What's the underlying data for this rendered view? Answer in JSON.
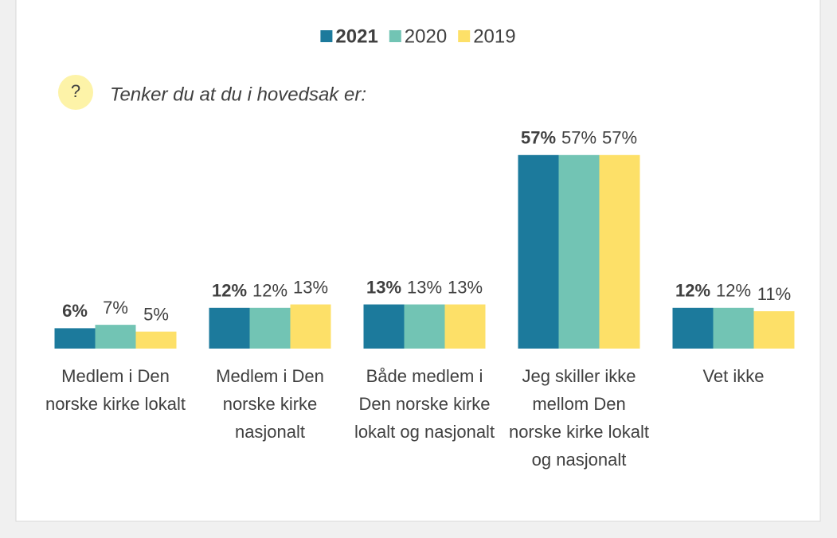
{
  "chart_data": {
    "type": "bar",
    "subtitle": "Tenker du at du i hovedsak er:",
    "icon": "?",
    "categories": [
      "Medlem i Den norske kirke lokalt",
      "Medlem i Den norske kirke nasjonalt",
      "Både medlem i Den norske kirke lokalt og nasjonalt",
      "Jeg skiller ikke mellom Den norske kirke lokalt og nasjonalt",
      "Vet ikke"
    ],
    "series": [
      {
        "name": "2021",
        "color": "#1c7a9c",
        "values": [
          6,
          12,
          13,
          57,
          12
        ],
        "value_labels": [
          "6%",
          "12%",
          "13%",
          "57%",
          "12%"
        ]
      },
      {
        "name": "2020",
        "color": "#72c4b4",
        "values": [
          7,
          12,
          13,
          57,
          12
        ],
        "value_labels": [
          "7%",
          "12%",
          "13%",
          "57%",
          "12%"
        ]
      },
      {
        "name": "2019",
        "color": "#fde068",
        "values": [
          5,
          13,
          13,
          57,
          11
        ],
        "value_labels": [
          "5%",
          "13%",
          "13%",
          "57%",
          "11%"
        ]
      }
    ],
    "ylim": [
      0,
      60
    ],
    "legend": "top"
  }
}
